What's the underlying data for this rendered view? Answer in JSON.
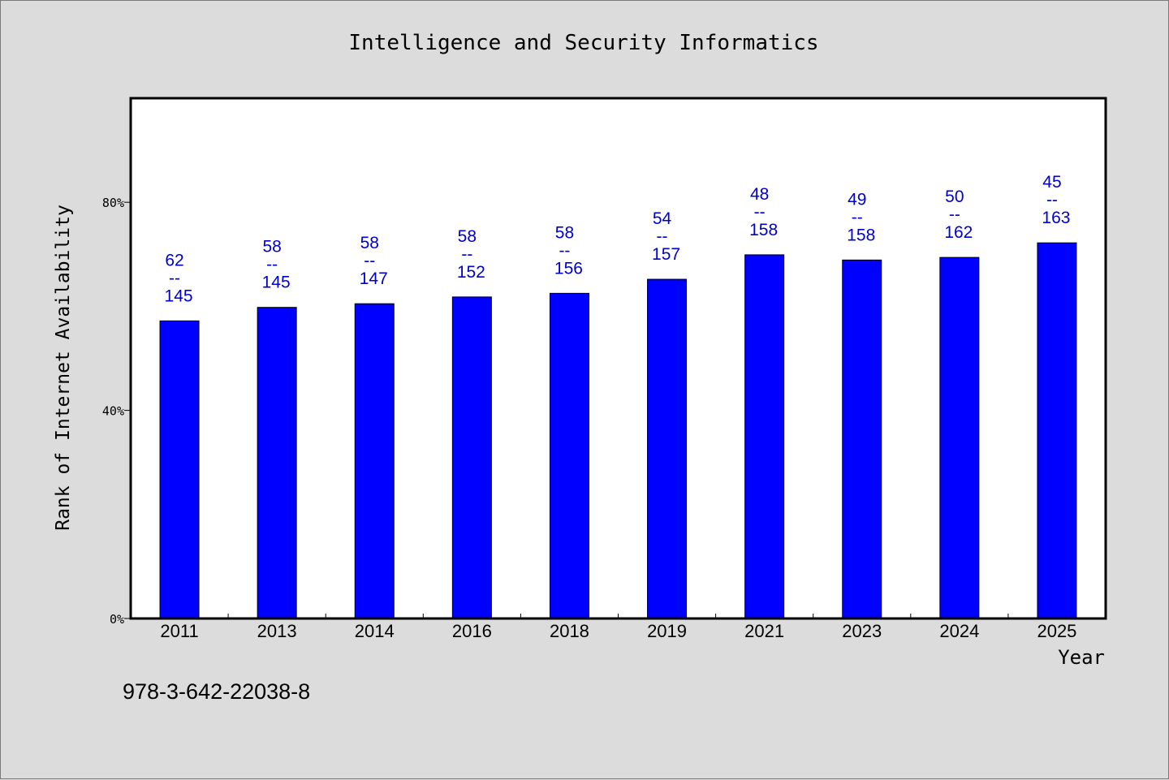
{
  "chart_data": {
    "type": "bar",
    "title": "Intelligence and Security Informatics",
    "xlabel": "Year",
    "ylabel": "Rank of Internet Availability",
    "ylim": [
      0,
      100
    ],
    "yticks": [
      "0%",
      "40%",
      "80%"
    ],
    "ytick_values": [
      0,
      40,
      80
    ],
    "categories": [
      "2011",
      "2013",
      "2014",
      "2016",
      "2018",
      "2019",
      "2021",
      "2023",
      "2024",
      "2025"
    ],
    "values": [
      57.2,
      59.8,
      60.5,
      61.8,
      62.5,
      65.2,
      69.9,
      68.9,
      69.4,
      72.2
    ],
    "data_labels": [
      {
        "top": "62",
        "sep": "--",
        "bottom": "145"
      },
      {
        "top": "58",
        "sep": "--",
        "bottom": "145"
      },
      {
        "top": "58",
        "sep": "--",
        "bottom": "147"
      },
      {
        "top": "58",
        "sep": "--",
        "bottom": "152"
      },
      {
        "top": "58",
        "sep": "--",
        "bottom": "156"
      },
      {
        "top": "54",
        "sep": "--",
        "bottom": "157"
      },
      {
        "top": "48",
        "sep": "--",
        "bottom": "158"
      },
      {
        "top": "49",
        "sep": "--",
        "bottom": "158"
      },
      {
        "top": "50",
        "sep": "--",
        "bottom": "162"
      },
      {
        "top": "45",
        "sep": "--",
        "bottom": "163"
      }
    ],
    "bar_color": "#0000ff",
    "label_color": "#0000cd",
    "grid": false,
    "legend": false
  },
  "footer": {
    "isbn": "978-3-642-22038-8"
  }
}
